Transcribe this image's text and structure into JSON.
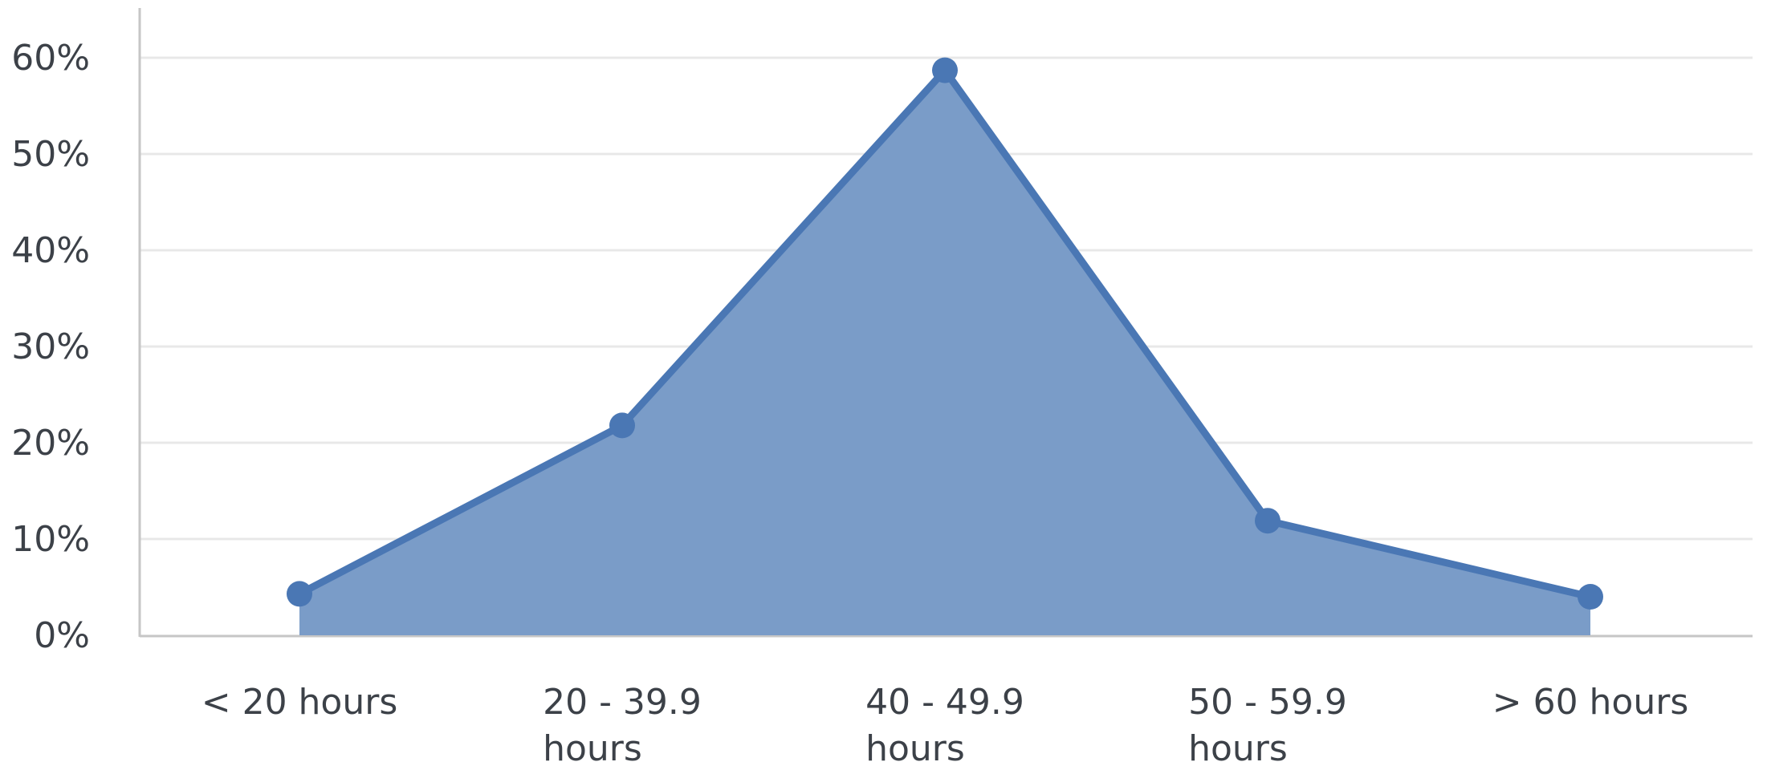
{
  "chart_data": {
    "type": "area",
    "categories": [
      "< 20 hours",
      "20 - 39.9 hours",
      "40 - 49.9 hours",
      "50 - 59.9 hours",
      "> 60 hours"
    ],
    "category_label_lines": [
      [
        "< 20 hours"
      ],
      [
        "20 - 39.9",
        "hours"
      ],
      [
        "40 - 49.9",
        "hours"
      ],
      [
        "50 - 59.9",
        "hours"
      ],
      [
        "> 60 hours"
      ]
    ],
    "series": [
      {
        "values": [
          4.3,
          21.8,
          58.7,
          11.9,
          4.0
        ]
      }
    ],
    "y_ticks": [
      0,
      10,
      20,
      30,
      40,
      50,
      60
    ],
    "y_tick_labels": [
      "0%",
      "10%",
      "20%",
      "30%",
      "40%",
      "50%",
      "60%"
    ],
    "ylim": [
      0,
      60
    ],
    "title": "",
    "xlabel": "",
    "ylabel": "",
    "grid": true,
    "legend": "none",
    "colors": {
      "area_fill": "#7a9cc8",
      "line": "#4a77b4",
      "marker": "#4a77b4",
      "grid": "#e8e8e8",
      "axis": "#c6c6c6",
      "tick_text": "#3c4148"
    }
  }
}
